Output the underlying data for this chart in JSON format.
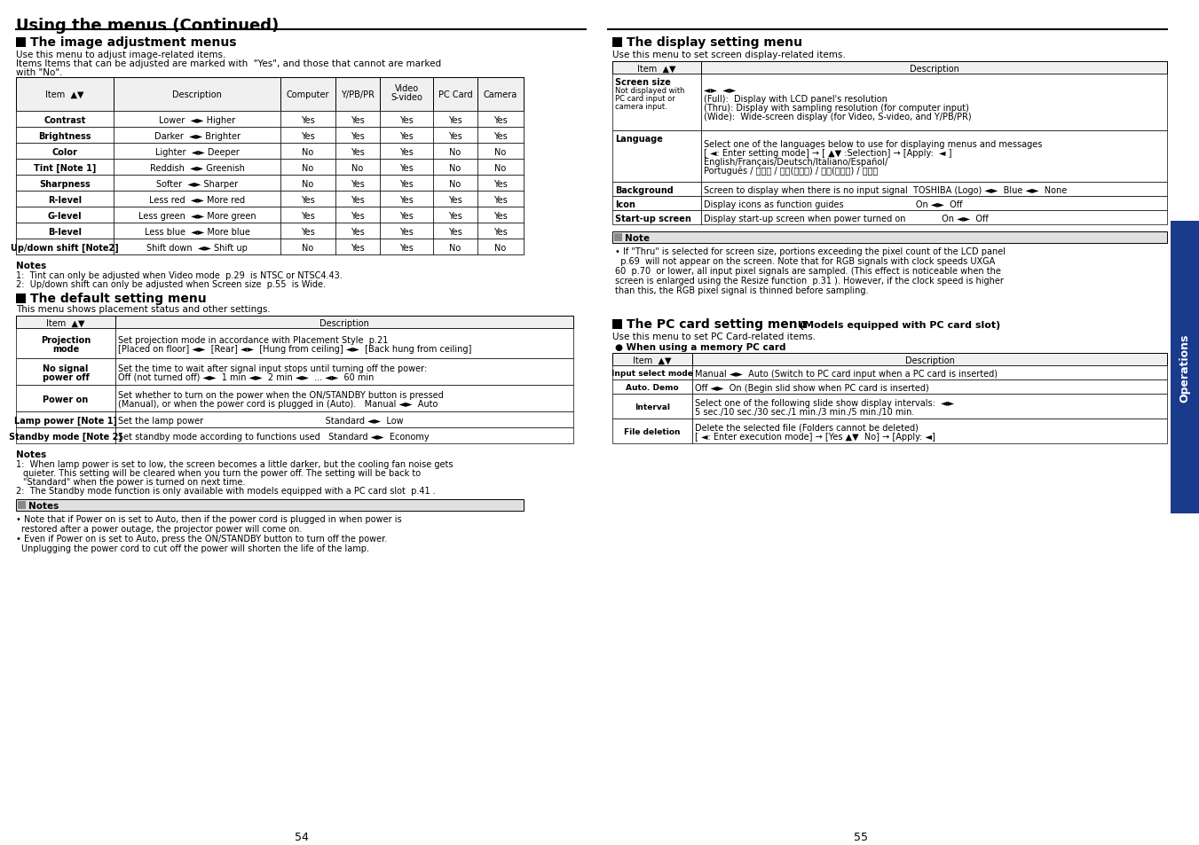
{
  "title": "Using the menus (Continued)",
  "bg_color": "#ffffff",
  "sidebar_color": "#1a3a8c",
  "sidebar_text": "Operations",
  "page_left": "54",
  "page_right": "55"
}
